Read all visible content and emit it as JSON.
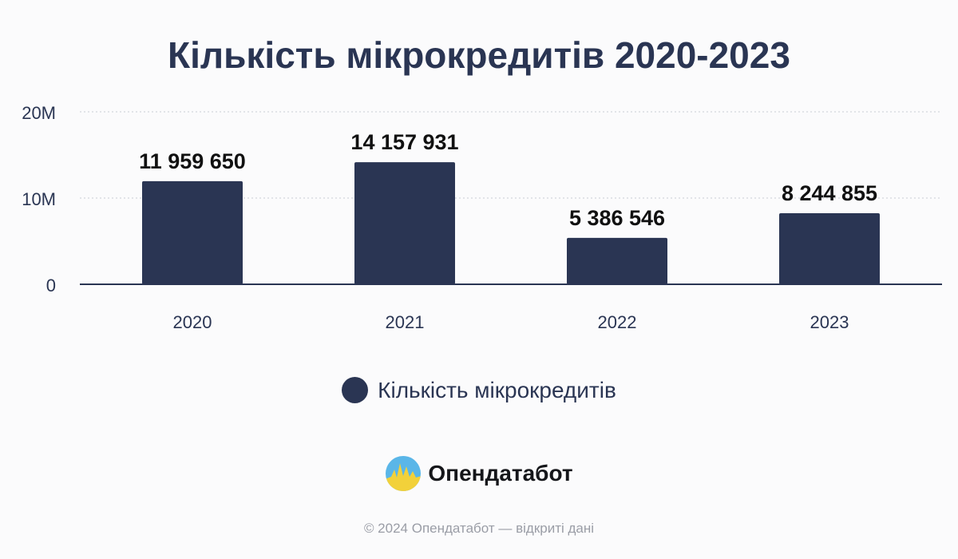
{
  "colors": {
    "bar": "#2a3553",
    "text": "#2a3553",
    "grid": "#c9ccd3",
    "background": "#fbfbfc"
  },
  "chart_data": {
    "type": "bar",
    "title": "Кількість мікрокредитів 2020-2023",
    "categories": [
      "2020",
      "2021",
      "2022",
      "2023"
    ],
    "series": [
      {
        "name": "Кількість мікрокредитів",
        "values": [
          11959650,
          14157931,
          5386546,
          8244855
        ]
      }
    ],
    "value_labels": [
      "11 959 650",
      "14 157 931",
      "5 386 546",
      "8 244 855"
    ],
    "y_ticks": [
      0,
      10000000,
      20000000
    ],
    "y_tick_labels": [
      "0",
      "10M",
      "20M"
    ],
    "ylim": [
      0,
      20000000
    ],
    "grid": true,
    "legend_position": "bottom"
  },
  "brand": {
    "name": "Опендатабот",
    "logo_icon": "opendatabot-logo-icon"
  },
  "footer": {
    "text": "© 2024 Опендатабот — відкриті дані"
  }
}
